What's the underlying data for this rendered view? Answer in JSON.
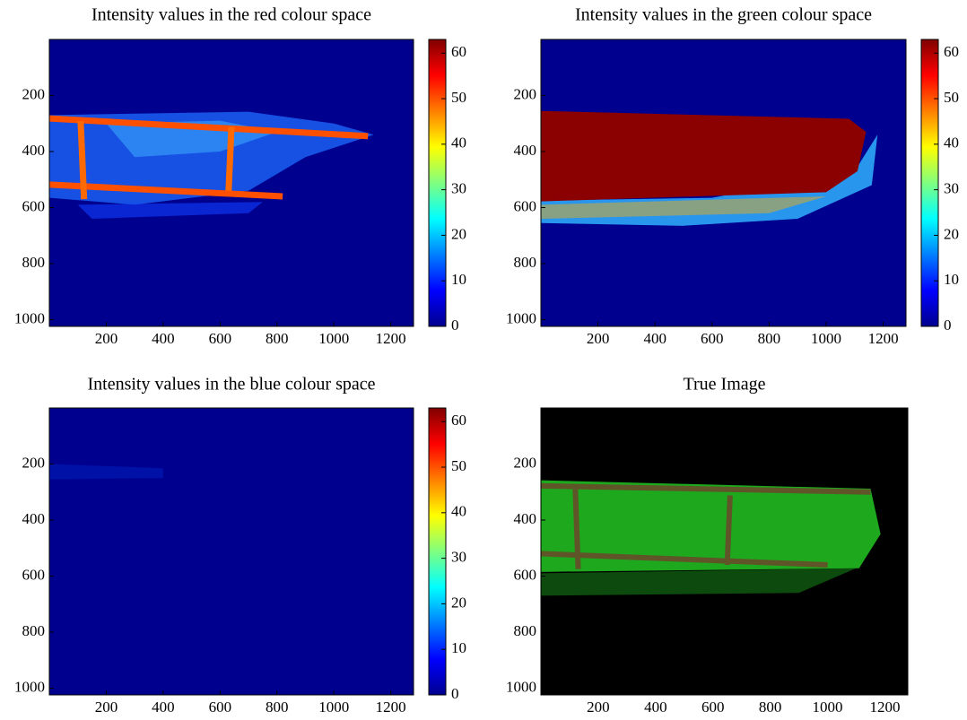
{
  "chart_data": [
    {
      "type": "heatmap",
      "title": "Intensity values in the red colour space",
      "xlim": [
        0,
        1280
      ],
      "ylim": [
        0,
        1024
      ],
      "yreverse": true,
      "xticks": [
        200,
        400,
        600,
        800,
        1000,
        1200
      ],
      "yticks": [
        200,
        400,
        600,
        800,
        1000
      ],
      "colorbar": {
        "clim": [
          0,
          63
        ],
        "ticks": [
          0,
          10,
          20,
          30,
          40,
          50,
          60
        ]
      }
    },
    {
      "type": "heatmap",
      "title": "Intensity values in the green colour space",
      "xlim": [
        0,
        1280
      ],
      "ylim": [
        0,
        1024
      ],
      "yreverse": true,
      "xticks": [
        200,
        400,
        600,
        800,
        1000,
        1200
      ],
      "yticks": [
        200,
        400,
        600,
        800,
        1000
      ],
      "colorbar": {
        "clim": [
          0,
          63
        ],
        "ticks": [
          0,
          10,
          20,
          30,
          40,
          50,
          60
        ]
      }
    },
    {
      "type": "heatmap",
      "title": "Intensity values in the blue colour space",
      "xlim": [
        0,
        1280
      ],
      "ylim": [
        0,
        1024
      ],
      "yreverse": true,
      "xticks": [
        200,
        400,
        600,
        800,
        1000,
        1200
      ],
      "yticks": [
        200,
        400,
        600,
        800,
        1000
      ],
      "colorbar": {
        "clim": [
          0,
          63
        ],
        "ticks": [
          0,
          10,
          20,
          30,
          40,
          50,
          60
        ]
      }
    },
    {
      "type": "image",
      "title": "True Image",
      "xlim": [
        0,
        1280
      ],
      "ylim": [
        0,
        1024
      ],
      "yreverse": true,
      "xticks": [
        200,
        400,
        600,
        800,
        1000,
        1200
      ],
      "yticks": [
        200,
        400,
        600,
        800,
        1000
      ]
    }
  ]
}
